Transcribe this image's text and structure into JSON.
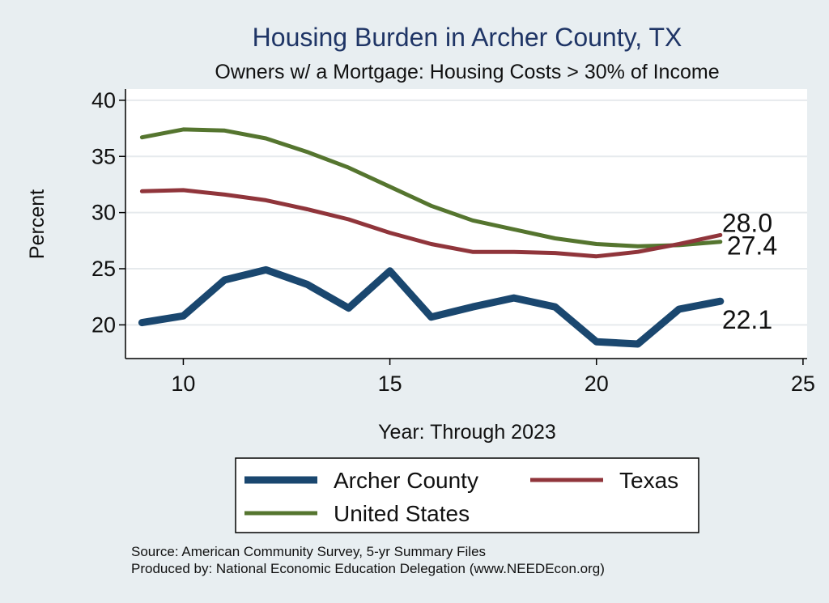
{
  "chart_data": {
    "type": "line",
    "title": "Housing Burden in Archer County, TX",
    "subtitle": "Owners w/ a Mortgage: Housing Costs > 30% of Income",
    "xlabel": "Year: Through 2023",
    "ylabel": "Percent",
    "xlim": [
      8.6,
      25.1
    ],
    "ylim": [
      17.0,
      41.0
    ],
    "xticks": [
      10,
      15,
      20,
      25
    ],
    "yticks": [
      20,
      25,
      30,
      35,
      40
    ],
    "grid": true,
    "x": [
      9,
      10,
      11,
      12,
      13,
      14,
      15,
      16,
      17,
      18,
      19,
      20,
      21,
      22,
      23
    ],
    "series": [
      {
        "name": "Archer County",
        "color": "#1a476f",
        "values": [
          20.2,
          20.8,
          24.0,
          24.9,
          23.6,
          21.5,
          24.8,
          20.7,
          21.6,
          22.4,
          21.6,
          18.5,
          18.3,
          21.4,
          22.1
        ],
        "end_label": "22.1"
      },
      {
        "name": "Texas",
        "color": "#90353b",
        "values": [
          31.9,
          32.0,
          31.6,
          31.1,
          30.3,
          29.4,
          28.2,
          27.2,
          26.5,
          26.5,
          26.4,
          26.1,
          26.5,
          27.2,
          28.0
        ],
        "end_label": "28.0"
      },
      {
        "name": "United States",
        "color": "#55752f",
        "values": [
          36.7,
          37.4,
          37.3,
          36.6,
          35.4,
          34.0,
          32.3,
          30.6,
          29.3,
          28.5,
          27.7,
          27.2,
          27.0,
          27.1,
          27.4
        ],
        "end_label": "27.4"
      }
    ],
    "legend": {
      "position": "bottom",
      "entries": [
        "Archer County",
        "Texas",
        "United States"
      ]
    },
    "source_lines": [
      "Source: American Community Survey, 5-yr Summary Files",
      "Produced by: National Economic Education Delegation (www.NEEDEcon.org)"
    ]
  },
  "colors": {
    "background": "#e8eef1",
    "plot_background": "#ffffff",
    "title": "#1f3566"
  }
}
